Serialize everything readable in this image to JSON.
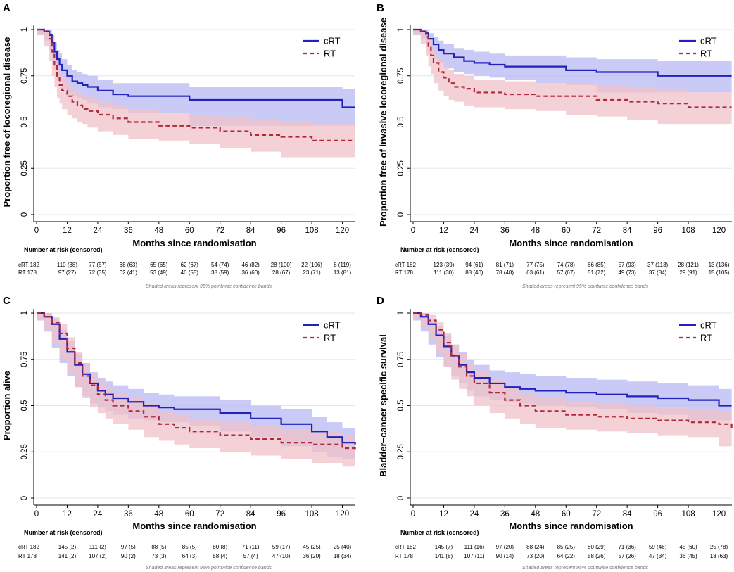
{
  "figure": {
    "legend": {
      "crt_label": "cRT",
      "rt_label": "RT"
    },
    "colors": {
      "crt_line": "#2222bb",
      "crt_band": "#b8b8f4",
      "rt_line": "#b0283a",
      "rt_band": "#f0c2c8",
      "grid": "#dde8e8"
    },
    "risk_title": "Number at risk (censored)",
    "band_note": "Shaded areas represent 95% pointwise confidence bands"
  },
  "chart_data": [
    {
      "type": "line",
      "panel": "A",
      "title": "",
      "xlabel": "Months since randomisation",
      "ylabel": "Proportion free of locoregional disease",
      "xlim": [
        0,
        124
      ],
      "ylim": [
        0,
        1
      ],
      "x_ticks": [
        0,
        12,
        24,
        36,
        48,
        60,
        72,
        84,
        96,
        108,
        120
      ],
      "y_ticks": [
        0,
        0.25,
        0.5,
        0.75,
        1
      ],
      "y_tick_labels": [
        "0",
        "0.25",
        "0.5",
        "0.75",
        "1"
      ],
      "grid": true,
      "legend_position": "top-right",
      "series": [
        {
          "name": "cRT",
          "x": [
            0,
            3,
            5,
            6,
            7,
            8,
            9,
            10,
            12,
            14,
            16,
            18,
            20,
            24,
            30,
            36,
            60,
            120,
            125
          ],
          "y": [
            1,
            0.99,
            0.97,
            0.93,
            0.88,
            0.84,
            0.81,
            0.78,
            0.75,
            0.72,
            0.71,
            0.7,
            0.69,
            0.67,
            0.65,
            0.64,
            0.62,
            0.58,
            0.58
          ],
          "lower": [
            1,
            0.97,
            0.94,
            0.89,
            0.83,
            0.78,
            0.75,
            0.72,
            0.68,
            0.65,
            0.64,
            0.63,
            0.62,
            0.6,
            0.58,
            0.57,
            0.55,
            0.48,
            0.48
          ],
          "upper": [
            1,
            1,
            1,
            0.97,
            0.93,
            0.89,
            0.87,
            0.84,
            0.81,
            0.78,
            0.77,
            0.76,
            0.75,
            0.73,
            0.71,
            0.71,
            0.69,
            0.68,
            0.68
          ]
        },
        {
          "name": "RT",
          "x": [
            0,
            3,
            5,
            6,
            7,
            8,
            9,
            10,
            12,
            14,
            16,
            18,
            20,
            24,
            30,
            36,
            48,
            60,
            72,
            84,
            96,
            108,
            125
          ],
          "y": [
            1,
            0.99,
            0.95,
            0.88,
            0.81,
            0.75,
            0.7,
            0.67,
            0.64,
            0.61,
            0.59,
            0.57,
            0.56,
            0.54,
            0.52,
            0.5,
            0.48,
            0.47,
            0.45,
            0.43,
            0.42,
            0.4,
            0.4
          ],
          "lower": [
            1,
            0.97,
            0.91,
            0.83,
            0.75,
            0.69,
            0.63,
            0.6,
            0.57,
            0.54,
            0.52,
            0.5,
            0.49,
            0.47,
            0.45,
            0.43,
            0.41,
            0.4,
            0.38,
            0.36,
            0.34,
            0.31,
            0.31
          ],
          "upper": [
            1,
            1,
            0.98,
            0.93,
            0.87,
            0.82,
            0.77,
            0.74,
            0.71,
            0.68,
            0.66,
            0.64,
            0.63,
            0.61,
            0.59,
            0.57,
            0.55,
            0.54,
            0.53,
            0.51,
            0.5,
            0.49,
            0.49
          ]
        }
      ],
      "risk_rows": [
        {
          "label": "cRT",
          "total": "182",
          "values": [
            "110 (38)",
            "77 (57)",
            "68 (63)",
            "65 (65)",
            "62 (67)",
            "54 (74)",
            "46 (82)",
            "28 (100)",
            "22 (106)",
            "8 (119)"
          ]
        },
        {
          "label": "RT",
          "total": "178",
          "values": [
            "97 (27)",
            "72 (35)",
            "62 (41)",
            "53 (49)",
            "46 (55)",
            "38 (59)",
            "36 (60)",
            "28 (67)",
            "23 (71)",
            "13 (81)"
          ]
        }
      ]
    },
    {
      "type": "line",
      "panel": "B",
      "title": "",
      "xlabel": "Months since randomisation",
      "ylabel": "Proportion free of invasive locoregional disease",
      "xlim": [
        0,
        124
      ],
      "ylim": [
        0,
        1
      ],
      "x_ticks": [
        0,
        12,
        24,
        36,
        48,
        60,
        72,
        84,
        96,
        108,
        120
      ],
      "y_ticks": [
        0,
        0.25,
        0.5,
        0.75,
        1
      ],
      "y_tick_labels": [
        "0",
        "0.25",
        "0.5",
        "0.75",
        "1"
      ],
      "grid": true,
      "legend_position": "top-right",
      "series": [
        {
          "name": "cRT",
          "x": [
            0,
            3,
            5,
            6,
            8,
            10,
            12,
            16,
            20,
            24,
            30,
            36,
            48,
            60,
            72,
            96,
            125
          ],
          "y": [
            1,
            0.99,
            0.98,
            0.95,
            0.92,
            0.89,
            0.87,
            0.85,
            0.83,
            0.82,
            0.81,
            0.8,
            0.8,
            0.78,
            0.77,
            0.75,
            0.75
          ],
          "lower": [
            1,
            0.97,
            0.95,
            0.91,
            0.87,
            0.84,
            0.82,
            0.79,
            0.77,
            0.76,
            0.75,
            0.74,
            0.73,
            0.71,
            0.7,
            0.66,
            0.66
          ],
          "upper": [
            1,
            1,
            1,
            0.98,
            0.96,
            0.94,
            0.92,
            0.9,
            0.89,
            0.88,
            0.87,
            0.86,
            0.86,
            0.85,
            0.84,
            0.83,
            0.83
          ]
        },
        {
          "name": "RT",
          "x": [
            0,
            3,
            5,
            6,
            7,
            8,
            10,
            12,
            14,
            16,
            20,
            24,
            36,
            48,
            60,
            72,
            84,
            96,
            108,
            125
          ],
          "y": [
            1,
            0.99,
            0.96,
            0.91,
            0.86,
            0.82,
            0.77,
            0.74,
            0.71,
            0.69,
            0.68,
            0.66,
            0.65,
            0.64,
            0.64,
            0.62,
            0.61,
            0.6,
            0.58,
            0.58
          ],
          "lower": [
            1,
            0.97,
            0.92,
            0.86,
            0.8,
            0.76,
            0.71,
            0.67,
            0.64,
            0.62,
            0.61,
            0.59,
            0.58,
            0.57,
            0.56,
            0.54,
            0.53,
            0.51,
            0.49,
            0.49
          ],
          "upper": [
            1,
            1,
            0.99,
            0.95,
            0.91,
            0.88,
            0.84,
            0.8,
            0.78,
            0.76,
            0.75,
            0.73,
            0.72,
            0.71,
            0.71,
            0.7,
            0.69,
            0.68,
            0.66,
            0.66
          ]
        }
      ],
      "risk_rows": [
        {
          "label": "cRT",
          "total": "182",
          "values": [
            "123 (39)",
            "94 (61)",
            "81 (71)",
            "77 (75)",
            "74 (78)",
            "66 (85)",
            "57 (93)",
            "37 (113)",
            "28 (121)",
            "13 (136)"
          ]
        },
        {
          "label": "RT",
          "total": "178",
          "values": [
            "111 (30)",
            "88 (40)",
            "78 (48)",
            "63 (61)",
            "57 (67)",
            "51 (72)",
            "49 (73)",
            "37 (84)",
            "29 (91)",
            "15 (105)"
          ]
        }
      ]
    },
    {
      "type": "line",
      "panel": "C",
      "title": "",
      "xlabel": "Months since randomisation",
      "ylabel": "Proportion alive",
      "xlim": [
        0,
        124
      ],
      "ylim": [
        0,
        1
      ],
      "x_ticks": [
        0,
        12,
        24,
        36,
        48,
        60,
        72,
        84,
        96,
        108,
        120
      ],
      "y_ticks": [
        0,
        0.25,
        0.5,
        0.75,
        1
      ],
      "y_tick_labels": [
        "0",
        "0.25",
        "0.5",
        "0.75",
        "1"
      ],
      "grid": true,
      "legend_position": "top-right",
      "series": [
        {
          "name": "cRT",
          "x": [
            0,
            3,
            6,
            9,
            12,
            15,
            18,
            21,
            24,
            27,
            30,
            36,
            42,
            48,
            54,
            60,
            72,
            84,
            96,
            108,
            114,
            120,
            125
          ],
          "y": [
            1,
            0.98,
            0.94,
            0.86,
            0.79,
            0.72,
            0.67,
            0.62,
            0.58,
            0.56,
            0.54,
            0.52,
            0.5,
            0.49,
            0.48,
            0.48,
            0.46,
            0.43,
            0.4,
            0.36,
            0.33,
            0.3,
            0.29
          ],
          "lower": [
            1,
            0.96,
            0.9,
            0.81,
            0.73,
            0.66,
            0.6,
            0.55,
            0.51,
            0.49,
            0.47,
            0.45,
            0.43,
            0.42,
            0.41,
            0.41,
            0.39,
            0.36,
            0.33,
            0.28,
            0.25,
            0.22,
            0.21
          ],
          "upper": [
            1,
            1,
            0.97,
            0.91,
            0.85,
            0.78,
            0.73,
            0.68,
            0.65,
            0.63,
            0.61,
            0.59,
            0.57,
            0.56,
            0.55,
            0.55,
            0.53,
            0.5,
            0.48,
            0.44,
            0.41,
            0.38,
            0.37
          ]
        },
        {
          "name": "RT",
          "x": [
            0,
            3,
            6,
            9,
            12,
            15,
            18,
            21,
            24,
            27,
            30,
            36,
            42,
            48,
            54,
            60,
            72,
            84,
            96,
            108,
            120,
            125
          ],
          "y": [
            1,
            0.98,
            0.95,
            0.89,
            0.81,
            0.73,
            0.66,
            0.61,
            0.56,
            0.53,
            0.5,
            0.47,
            0.44,
            0.4,
            0.38,
            0.36,
            0.34,
            0.32,
            0.3,
            0.29,
            0.27,
            0.25
          ],
          "lower": [
            1,
            0.96,
            0.91,
            0.84,
            0.75,
            0.67,
            0.6,
            0.54,
            0.49,
            0.46,
            0.43,
            0.4,
            0.37,
            0.33,
            0.31,
            0.29,
            0.27,
            0.25,
            0.23,
            0.21,
            0.19,
            0.17
          ],
          "upper": [
            1,
            1,
            0.98,
            0.94,
            0.87,
            0.79,
            0.72,
            0.67,
            0.63,
            0.6,
            0.57,
            0.54,
            0.51,
            0.47,
            0.45,
            0.43,
            0.41,
            0.39,
            0.37,
            0.36,
            0.34,
            0.33
          ]
        }
      ],
      "risk_rows": [
        {
          "label": "cRT",
          "total": "182",
          "values": [
            "145 (2)",
            "111 (2)",
            "97 (5)",
            "88 (5)",
            "85 (5)",
            "80 (8)",
            "71 (11)",
            "59 (17)",
            "45 (25)",
            "25 (40)"
          ]
        },
        {
          "label": "RT",
          "total": "178",
          "values": [
            "141 (2)",
            "107 (2)",
            "90 (2)",
            "73 (3)",
            "64 (3)",
            "58 (4)",
            "57 (4)",
            "47 (10)",
            "36 (20)",
            "18 (34)"
          ]
        }
      ]
    },
    {
      "type": "line",
      "panel": "D",
      "title": "",
      "xlabel": "Months since randomisation",
      "ylabel": "Bladder−cancer specific survival",
      "xlim": [
        0,
        124
      ],
      "ylim": [
        0,
        1
      ],
      "x_ticks": [
        0,
        12,
        24,
        36,
        48,
        60,
        72,
        84,
        96,
        108,
        120
      ],
      "y_ticks": [
        0,
        0.25,
        0.5,
        0.75,
        1
      ],
      "y_tick_labels": [
        "0",
        "0.25",
        "0.5",
        "0.75",
        "1"
      ],
      "grid": true,
      "legend_position": "top-right",
      "series": [
        {
          "name": "cRT",
          "x": [
            0,
            3,
            6,
            9,
            12,
            15,
            18,
            21,
            24,
            30,
            36,
            42,
            48,
            60,
            72,
            84,
            96,
            108,
            120,
            125
          ],
          "y": [
            1,
            0.98,
            0.94,
            0.88,
            0.82,
            0.77,
            0.72,
            0.68,
            0.65,
            0.62,
            0.6,
            0.59,
            0.58,
            0.57,
            0.56,
            0.55,
            0.54,
            0.53,
            0.5,
            0.5
          ],
          "lower": [
            1,
            0.96,
            0.9,
            0.83,
            0.76,
            0.71,
            0.66,
            0.62,
            0.58,
            0.55,
            0.53,
            0.52,
            0.51,
            0.5,
            0.49,
            0.48,
            0.46,
            0.45,
            0.42,
            0.42
          ],
          "upper": [
            1,
            1,
            0.97,
            0.93,
            0.88,
            0.83,
            0.79,
            0.75,
            0.72,
            0.69,
            0.68,
            0.67,
            0.66,
            0.65,
            0.64,
            0.63,
            0.62,
            0.61,
            0.59,
            0.59
          ]
        },
        {
          "name": "RT",
          "x": [
            0,
            3,
            6,
            9,
            12,
            15,
            18,
            21,
            24,
            30,
            36,
            42,
            48,
            60,
            72,
            84,
            96,
            108,
            120,
            124,
            125
          ],
          "y": [
            1,
            0.99,
            0.96,
            0.91,
            0.84,
            0.77,
            0.71,
            0.66,
            0.62,
            0.57,
            0.53,
            0.5,
            0.47,
            0.45,
            0.44,
            0.43,
            0.42,
            0.41,
            0.4,
            0.4,
            0.37
          ],
          "lower": [
            1,
            0.97,
            0.92,
            0.86,
            0.78,
            0.71,
            0.64,
            0.59,
            0.55,
            0.5,
            0.46,
            0.43,
            0.4,
            0.38,
            0.37,
            0.36,
            0.35,
            0.34,
            0.33,
            0.28,
            0.28
          ],
          "upper": [
            1,
            1,
            0.99,
            0.95,
            0.89,
            0.83,
            0.78,
            0.73,
            0.69,
            0.64,
            0.6,
            0.57,
            0.54,
            0.52,
            0.51,
            0.5,
            0.49,
            0.48,
            0.47,
            0.47,
            0.47
          ]
        }
      ],
      "risk_rows": [
        {
          "label": "cRT",
          "total": "182",
          "values": [
            "145 (7)",
            "111 (16)",
            "97 (20)",
            "88 (24)",
            "85 (25)",
            "80 (29)",
            "71 (36)",
            "59 (46)",
            "45 (60)",
            "25 (78)"
          ]
        },
        {
          "label": "RT",
          "total": "178",
          "values": [
            "141 (8)",
            "107 (11)",
            "90 (14)",
            "73 (20)",
            "64 (22)",
            "58 (26)",
            "57 (26)",
            "47 (34)",
            "36 (45)",
            "18 (63)"
          ]
        }
      ]
    }
  ]
}
